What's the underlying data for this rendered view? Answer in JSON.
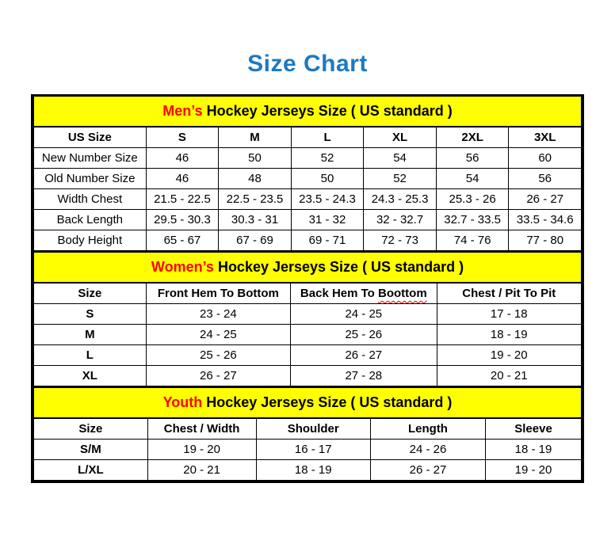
{
  "page_title": "Size Chart",
  "colors": {
    "title_blue": "#1B7AC4",
    "band_yellow": "#FFFF00",
    "accent_red": "#FF0000",
    "squiggle_red": "#E60000"
  },
  "tables": [
    {
      "id": "mens",
      "band": {
        "highlight": "Men’s",
        "rest": " Hockey Jerseys Size ( US standard )"
      },
      "columns": [
        "US Size",
        "S",
        "M",
        "L",
        "XL",
        "2XL",
        "3XL"
      ],
      "rows": [
        {
          "label": "New Number Size",
          "values": [
            "46",
            "50",
            "52",
            "54",
            "56",
            "60"
          ]
        },
        {
          "label": "Old Number Size",
          "values": [
            "46",
            "48",
            "50",
            "52",
            "54",
            "56"
          ]
        },
        {
          "label": "Width Chest",
          "values": [
            "21.5 - 22.5",
            "22.5 - 23.5",
            "23.5 - 24.3",
            "24.3 - 25.3",
            "25.3 - 26",
            "26 - 27"
          ]
        },
        {
          "label": "Back Length",
          "values": [
            "29.5 - 30.3",
            "30.3 - 31",
            "31 - 32",
            "32 - 32.7",
            "32.7 - 33.5",
            "33.5 - 34.6"
          ]
        },
        {
          "label": "Body Height",
          "values": [
            "65 - 67",
            "67 - 69",
            "69 - 71",
            "72 - 73",
            "74 - 76",
            "77 - 80"
          ]
        }
      ]
    },
    {
      "id": "womens",
      "band": {
        "highlight": "Women’s",
        "rest": " Hockey Jerseys Size ( US standard )"
      },
      "columns": [
        "Size",
        "Front Hem To Bottom",
        {
          "text": "Back Hem To ",
          "squiggle": "Boottom"
        },
        "Chest / Pit To Pit"
      ],
      "rows": [
        {
          "label": "S",
          "values": [
            "23 - 24",
            "24 - 25",
            "17 - 18"
          ]
        },
        {
          "label": "M",
          "values": [
            "24 - 25",
            "25 - 26",
            "18 - 19"
          ]
        },
        {
          "label": "L",
          "values": [
            "25 - 26",
            "26 - 27",
            "19 - 20"
          ]
        },
        {
          "label": "XL",
          "values": [
            "26 - 27",
            "27 - 28",
            "20 - 21"
          ]
        }
      ]
    },
    {
      "id": "youth",
      "band": {
        "highlight": "Youth",
        "rest": " Hockey Jerseys Size ( US standard )"
      },
      "columns": [
        "Size",
        "Chest / Width",
        "Shoulder",
        "Length",
        "Sleeve"
      ],
      "rows": [
        {
          "label": "S/M",
          "values": [
            "19 - 20",
            "16 - 17",
            "24 - 26",
            "18 - 19"
          ]
        },
        {
          "label": "L/XL",
          "values": [
            "20 - 21",
            "18 - 19",
            "26 - 27",
            "19 - 20"
          ]
        }
      ]
    }
  ]
}
